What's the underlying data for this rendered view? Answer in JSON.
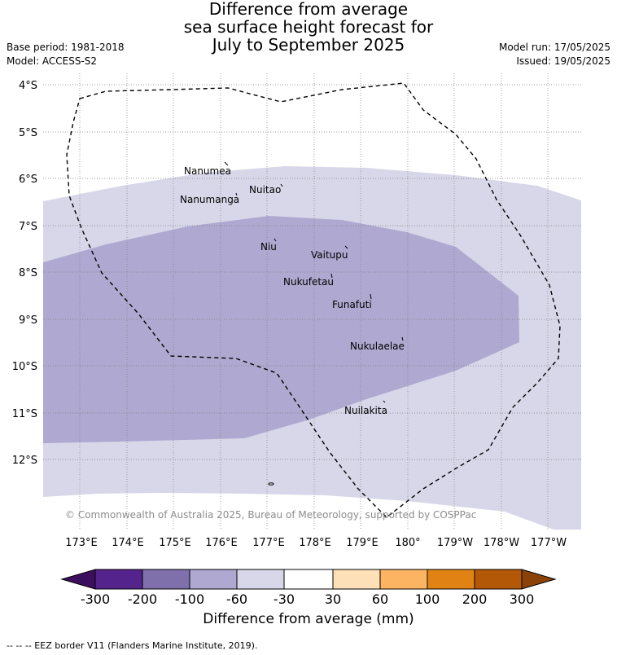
{
  "title": {
    "line1": "Difference from average",
    "line2": "sea surface height forecast for",
    "line3": "July to September 2025"
  },
  "meta": {
    "base_period": "Base period: 1981-2018",
    "model": "Model: ACCESS-S2",
    "model_run": "Model run: 17/05/2025",
    "issued": "Issued: 19/05/2025"
  },
  "map": {
    "lat_labels": [
      "4°S",
      "5°S",
      "6°S",
      "7°S",
      "8°S",
      "9°S",
      "10°S",
      "11°S",
      "12°S"
    ],
    "lon_labels": [
      "173°E",
      "174°E",
      "175°E",
      "176°E",
      "177°E",
      "178°E",
      "179°E",
      "180°",
      "179°W",
      "178°W",
      "177°W"
    ],
    "places": [
      {
        "name": "Nanumea"
      },
      {
        "name": "Nuitao"
      },
      {
        "name": "Nanumanga"
      },
      {
        "name": "Niu"
      },
      {
        "name": "Vaitupu"
      },
      {
        "name": "Nukufetau"
      },
      {
        "name": "Funafuti"
      },
      {
        "name": "Nukulaelae"
      },
      {
        "name": "Nuilakita"
      }
    ],
    "copyright": "© Commonwealth of Australia 2025, Bureau of Meteorology, supported by COSPPac",
    "colors": {
      "ocean_light": "#d7d7e9",
      "ocean_mid": "#afa8d0",
      "eez_line": "#000000",
      "grid": "#808080"
    }
  },
  "colorbar": {
    "labels": [
      "-300",
      "-200",
      "-100",
      "-60",
      "-30",
      "30",
      "60",
      "100",
      "200",
      "300"
    ],
    "colors": [
      "#3c0f5e",
      "#55238c",
      "#7f6fab",
      "#afa8d0",
      "#d7d7e9",
      "#ffffff",
      "#fde0b8",
      "#fdb462",
      "#e08214",
      "#b35806",
      "#8a4208"
    ],
    "title": "Difference from average (mm)"
  },
  "footer": "-- -- -- EEZ border V11 (Flanders Marine Institute, 2019)."
}
